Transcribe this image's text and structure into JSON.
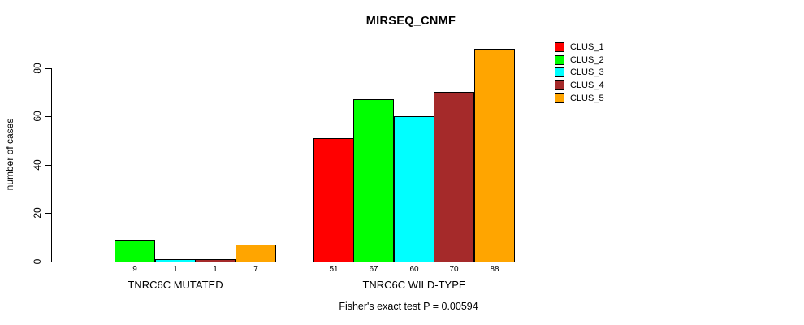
{
  "chart_data": {
    "type": "bar",
    "title": "MIRSEQ_CNMF",
    "ylabel": "number of cases",
    "xlabel": "",
    "footnote": "Fisher's exact test P = 0.00594",
    "categories": [
      "TNRC6C MUTATED",
      "TNRC6C WILD-TYPE"
    ],
    "series": [
      {
        "name": "CLUS_1",
        "color": "#FF0000",
        "values": [
          0,
          51
        ]
      },
      {
        "name": "CLUS_2",
        "color": "#00FF00",
        "values": [
          9,
          67
        ]
      },
      {
        "name": "CLUS_3",
        "color": "#00FFFF",
        "values": [
          1,
          60
        ]
      },
      {
        "name": "CLUS_4",
        "color": "#A52A2A",
        "values": [
          1,
          70
        ]
      },
      {
        "name": "CLUS_5",
        "color": "#FFA500",
        "values": [
          7,
          88
        ]
      }
    ],
    "bar_value_labels": [
      [
        "",
        "9",
        "1",
        "1",
        "7"
      ],
      [
        "51",
        "67",
        "60",
        "70",
        "88"
      ]
    ],
    "yticks": [
      0,
      20,
      40,
      60,
      80
    ],
    "ylim": [
      0,
      88
    ],
    "grid": false,
    "legend": {
      "position": "top-right",
      "entries": [
        "CLUS_1",
        "CLUS_2",
        "CLUS_3",
        "CLUS_4",
        "CLUS_5"
      ]
    },
    "axis_color": "#000000",
    "background": "#FFFFFF"
  }
}
